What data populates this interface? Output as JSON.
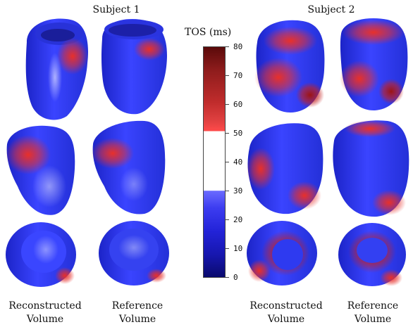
{
  "subjects": [
    "Subject 1",
    "Subject 2"
  ],
  "colorbar": {
    "title": "TOS (ms)",
    "ticks": [
      "80",
      "70",
      "60",
      "50",
      "40",
      "30",
      "20",
      "10",
      "0"
    ]
  },
  "captions": {
    "reconstructed": [
      "Reconstructed",
      "Volume"
    ],
    "reference": [
      "Reference",
      "Volume"
    ]
  },
  "colors": {
    "blue": "#2d3cf5",
    "red": "#e2322c",
    "white": "#ffffff",
    "dark_red": "#8e1c1c"
  }
}
